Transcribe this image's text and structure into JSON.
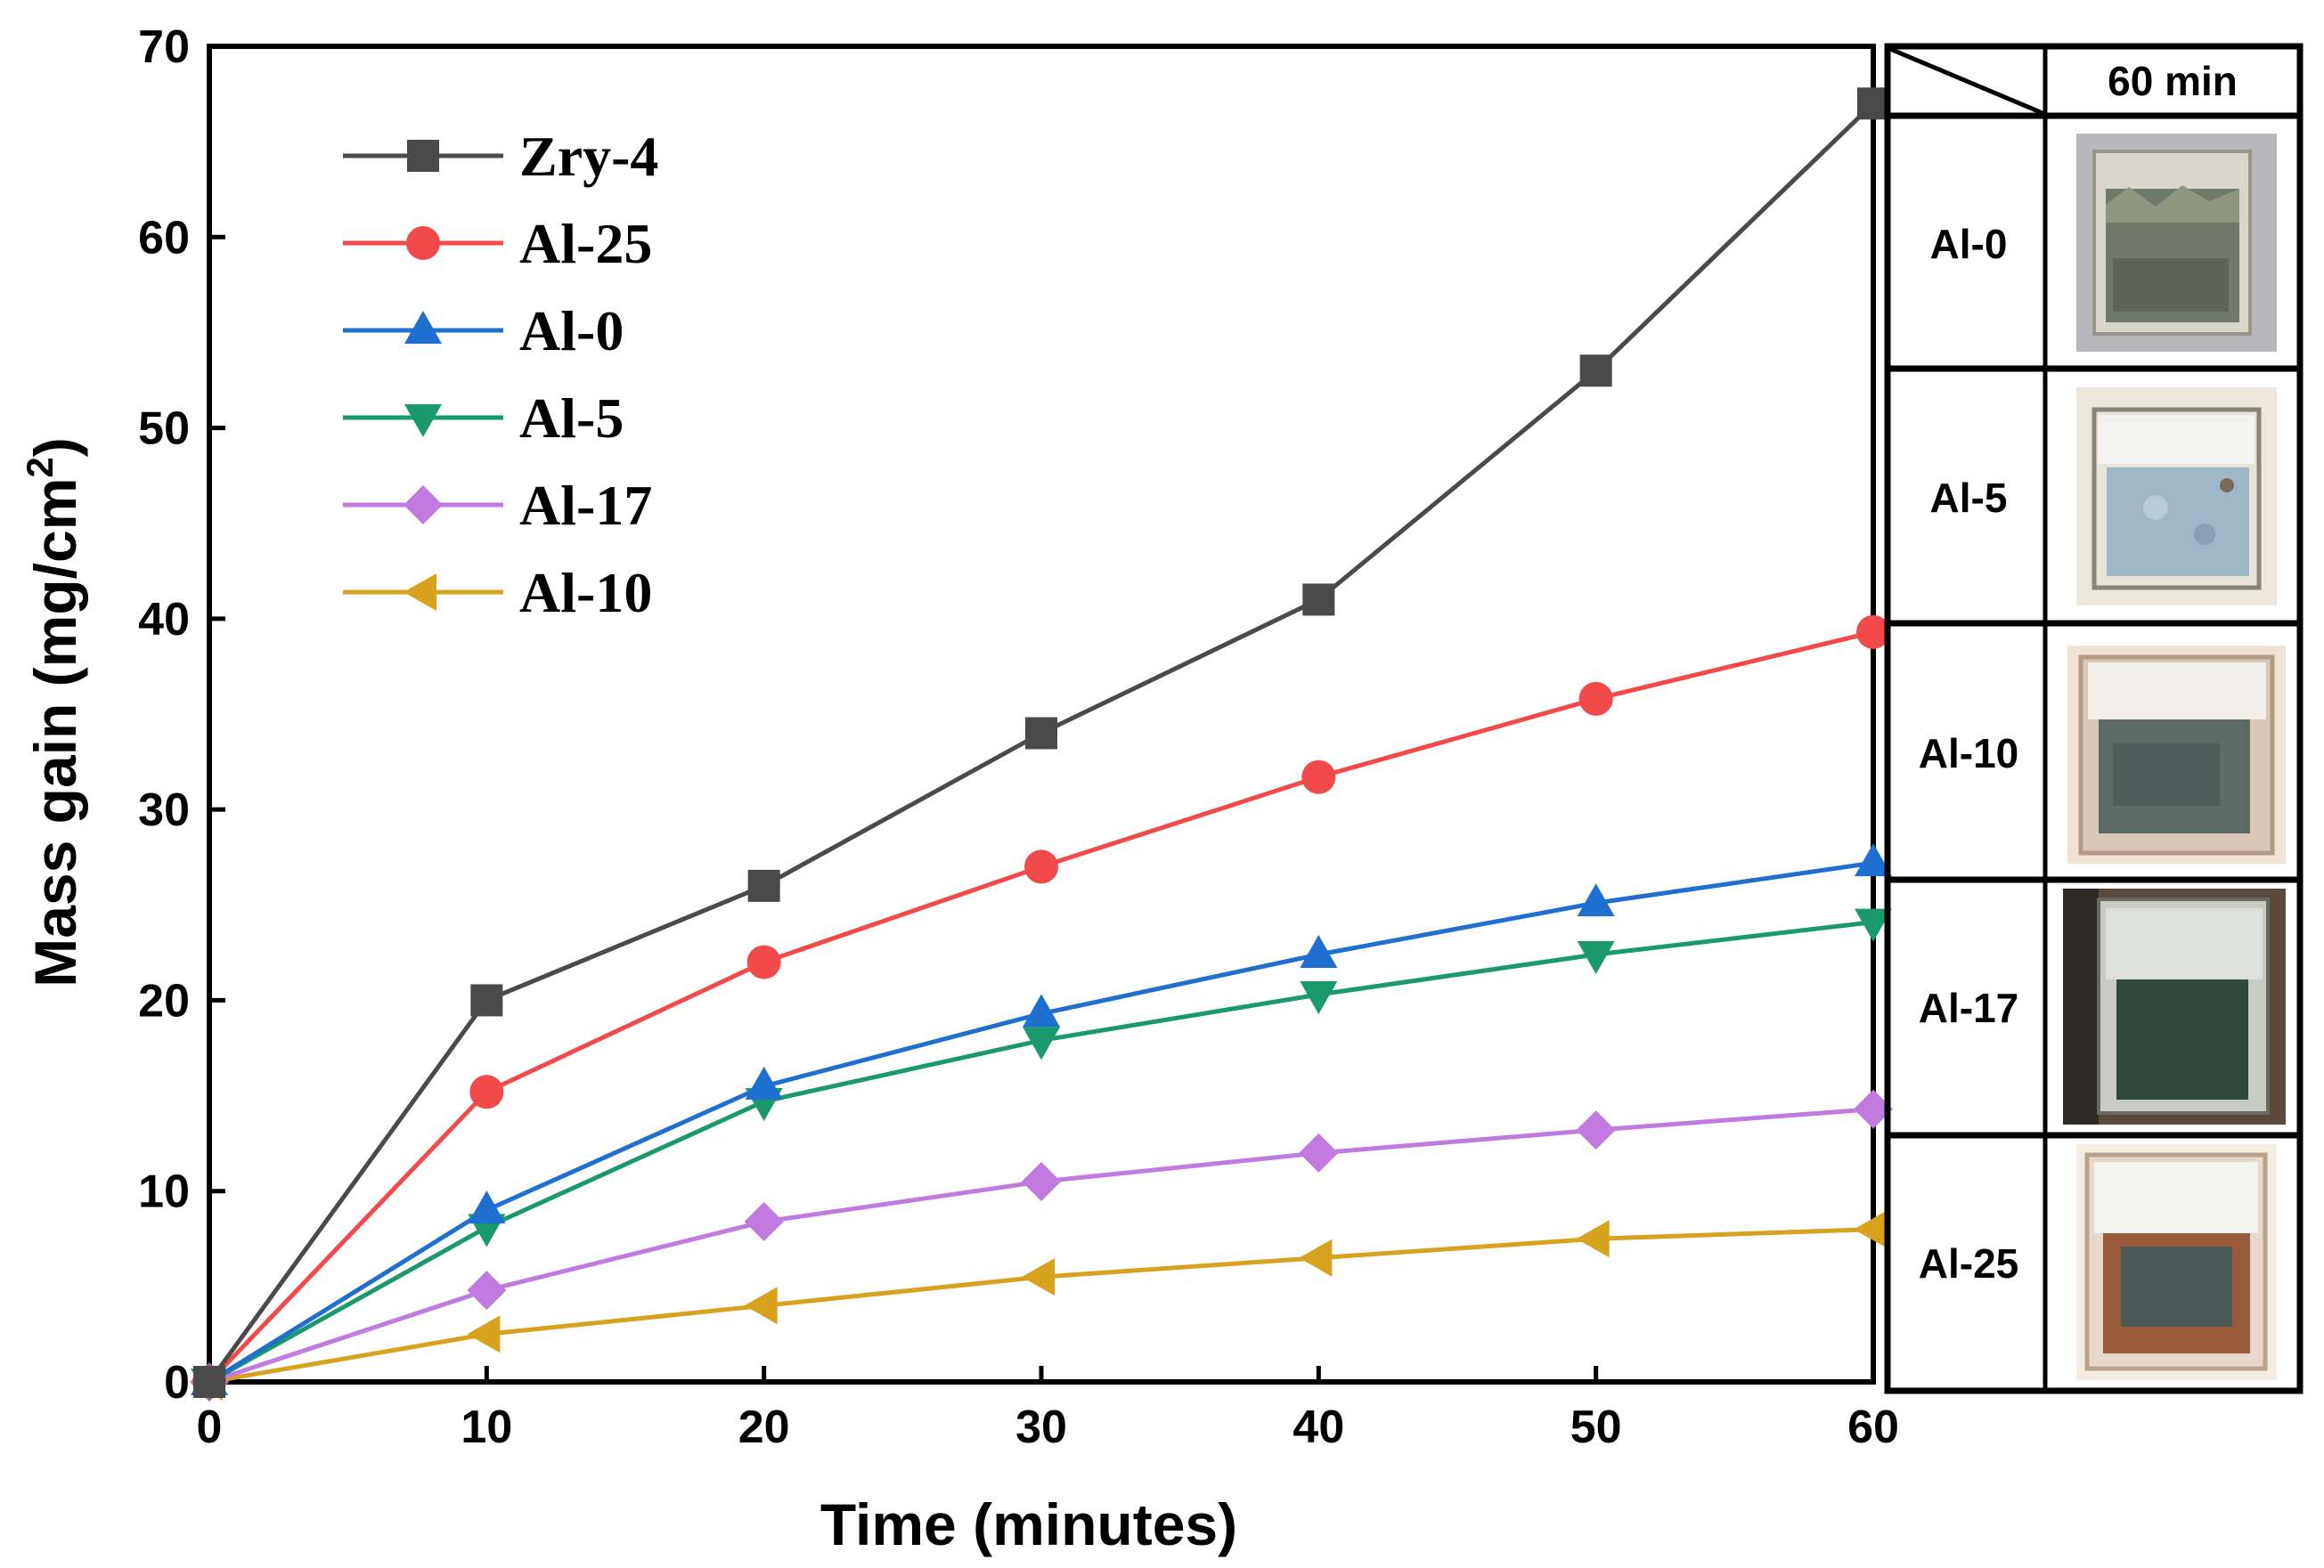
{
  "chart_data": {
    "type": "line",
    "title": "",
    "xlabel": "Time (minutes)",
    "ylabel": "Mass gain (mg/cm2)",
    "ylabel_main": "Mass gain (mg/cm",
    "ylabel_sup": "2",
    "ylabel_close": ")",
    "xlim": [
      0,
      60
    ],
    "ylim": [
      0,
      70
    ],
    "xticks": [
      0,
      10,
      20,
      30,
      40,
      50,
      60
    ],
    "yticks": [
      0,
      10,
      20,
      30,
      40,
      50,
      60,
      70
    ],
    "grid": false,
    "legend_position": "top-left",
    "x": [
      0,
      10,
      20,
      30,
      40,
      50,
      60
    ],
    "series": [
      {
        "name": "Zry-4",
        "color": "#4a4a4a",
        "marker": "square",
        "values": [
          0,
          20,
          26,
          34,
          41,
          53,
          67
        ]
      },
      {
        "name": "Al-25",
        "color": "#f24a4a",
        "marker": "circle",
        "values": [
          0,
          15.2,
          22,
          27,
          31.7,
          35.8,
          39.3
        ]
      },
      {
        "name": "Al-0",
        "color": "#1f6fd1",
        "marker": "triangle-up",
        "values": [
          0,
          9,
          15.5,
          19.3,
          22.4,
          25.1,
          27.2
        ]
      },
      {
        "name": "Al-5",
        "color": "#1a9a6c",
        "marker": "triangle-down",
        "values": [
          0,
          8.1,
          14.7,
          17.9,
          20.3,
          22.4,
          24.1
        ]
      },
      {
        "name": "Al-17",
        "color": "#c07ae0",
        "marker": "diamond",
        "values": [
          0,
          4.8,
          8.4,
          10.5,
          12,
          13.2,
          14.3
        ]
      },
      {
        "name": "Al-10",
        "color": "#d9a21e",
        "marker": "triangle-left",
        "values": [
          0,
          2.5,
          4,
          5.5,
          6.5,
          7.5,
          8
        ]
      }
    ]
  },
  "sample_table": {
    "header": "60 min",
    "rows": [
      {
        "label": "Al-0",
        "photo_icon": "al-0-sample-photo"
      },
      {
        "label": "Al-5",
        "photo_icon": "al-5-sample-photo"
      },
      {
        "label": "Al-10",
        "photo_icon": "al-10-sample-photo"
      },
      {
        "label": "Al-17",
        "photo_icon": "al-17-sample-photo"
      },
      {
        "label": "Al-25",
        "photo_icon": "al-25-sample-photo"
      }
    ]
  }
}
